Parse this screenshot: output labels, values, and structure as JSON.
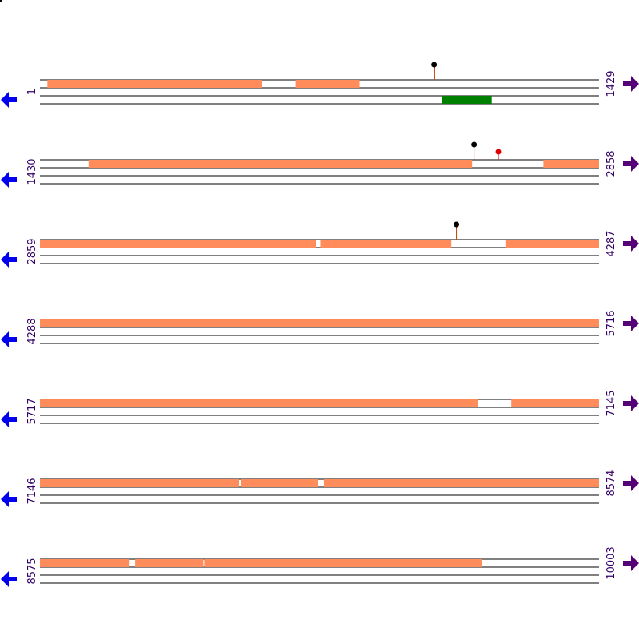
{
  "colors": {
    "segment": "#ff8c5a",
    "feature": "#008000",
    "lollipop_black": "#000000",
    "lollipop_red": "#e00000",
    "lollipop_stem": "#c04000",
    "left_arrow": "#0000ee",
    "right_arrow": "#550077",
    "track_line": "#000000"
  },
  "icons": {
    "left": "arrow-left-icon",
    "right": "arrow-right-icon"
  },
  "rows": [
    {
      "start": 1,
      "end": 1429,
      "start_label": "1",
      "end_label": "1429",
      "segments": [
        [
          20,
          568
        ],
        [
          653,
          818
        ]
      ],
      "features": [
        [
          1027,
          1155
        ]
      ],
      "markers": [
        {
          "pos": 1008,
          "color": "black",
          "height": "tall"
        }
      ]
    },
    {
      "start": 1430,
      "end": 2858,
      "start_label": "1430",
      "end_label": "2858",
      "segments": [
        [
          1554,
          2534
        ],
        [
          2716,
          2858
        ]
      ],
      "features": [],
      "markers": [
        {
          "pos": 2539,
          "color": "black",
          "height": "tall"
        },
        {
          "pos": 2601,
          "color": "red",
          "height": "short"
        }
      ]
    },
    {
      "start": 2859,
      "end": 4287,
      "start_label": "2859",
      "end_label": "4287",
      "segments": [
        [
          2859,
          3564
        ],
        [
          3576,
          3910
        ],
        [
          4048,
          4287
        ]
      ],
      "features": [],
      "markers": [
        {
          "pos": 3923,
          "color": "black",
          "height": "tall"
        }
      ]
    },
    {
      "start": 4288,
      "end": 5716,
      "start_label": "4288",
      "end_label": "5716",
      "segments": [
        [
          4288,
          5716
        ]
      ],
      "features": [],
      "markers": []
    },
    {
      "start": 5717,
      "end": 7145,
      "start_label": "5717",
      "end_label": "7145",
      "segments": [
        [
          5717,
          6835
        ],
        [
          6921,
          7145
        ]
      ],
      "features": [],
      "markers": []
    },
    {
      "start": 7146,
      "end": 8574,
      "start_label": "7146",
      "end_label": "8574",
      "segments": [
        [
          7146,
          7654
        ],
        [
          7660,
          7856
        ],
        [
          7872,
          8574
        ]
      ],
      "features": [],
      "markers": []
    },
    {
      "start": 8575,
      "end": 10003,
      "start_label": "8575",
      "end_label": "10003",
      "segments": [
        [
          8575,
          8804
        ],
        [
          8818,
          8992
        ],
        [
          8996,
          9704
        ]
      ],
      "features": [],
      "markers": []
    }
  ]
}
